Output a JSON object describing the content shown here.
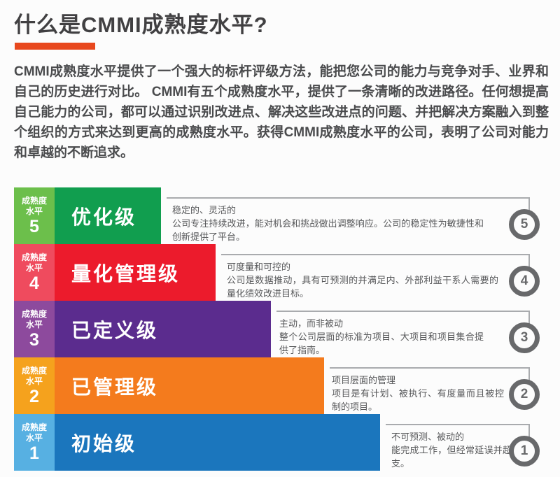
{
  "page": {
    "title": "什么是CMMI成熟度水平?",
    "intro": "CMMI成熟度水平提供了一个强大的标杆评级方法，能把您公司的能力与竞争对手、业界和自己的历史进行对比。 CMMI有五个成熟度水平，提供了一条清晰的改进路径。任何想提高自己能力的公司，都可以通过识别改进点、解决这些改进点的问题、并把解决方案融入到整个组织的方式来达到更高的成熟度水平。获得CMMI成熟度水平的公司，表明了公司对能力和卓越的不断追求。",
    "accent_color": "#e8481d",
    "title_color": "#414042",
    "body_text_color": "#4a4b4d"
  },
  "chart_data": {
    "type": "bar",
    "orientation": "horizontal-stepped-pyramid",
    "title": "CMMI成熟度水平",
    "label_prefix": [
      "成熟度",
      "水平"
    ],
    "legend_position": "none",
    "grid": false,
    "connector_color": "#a9abae",
    "badge_color": "#68696b",
    "description_text_color": "#57585a",
    "levels": [
      {
        "level": "5",
        "name": "优化级",
        "relative_bar_length": 1,
        "heading": "稳定的、灵活的",
        "body": "公司专注持续改进，能对机会和挑战做出调整响应。公司的稳定性为敏捷性和创新提供了平台。",
        "bar_color": "#119e4f",
        "label_color": "#6cbf4b"
      },
      {
        "level": "4",
        "name": "量化管理级",
        "relative_bar_length": 2,
        "heading": "可度量和可控的",
        "body": "公司是数据推动，具有可预测的并满足内、外部利益干系人需要的量化绩效改进目标。",
        "bar_color": "#ec1b2c",
        "label_color": "#ef4b5e"
      },
      {
        "level": "3",
        "name": "已定义级",
        "relative_bar_length": 3,
        "heading": "主动，而非被动",
        "body": "整个公司层面的标准为项目、大项目和项目集合提供了指南。",
        "bar_color": "#5b2c8e",
        "label_color": "#8d4a9d"
      },
      {
        "level": "2",
        "name": "已管理级",
        "relative_bar_length": 4,
        "heading": "项目层面的管理",
        "body": "项目是有计划、被执行、有度量而且被控制的项目。",
        "bar_color": "#f47b1d",
        "label_color": "#f5a21d"
      },
      {
        "level": "1",
        "name": "初始级",
        "relative_bar_length": 5,
        "heading": "不可预测、被动的",
        "body": "能完成工作，但经常延误并超支。",
        "bar_color": "#1b76bd",
        "label_color": "#57b0e2"
      }
    ]
  }
}
